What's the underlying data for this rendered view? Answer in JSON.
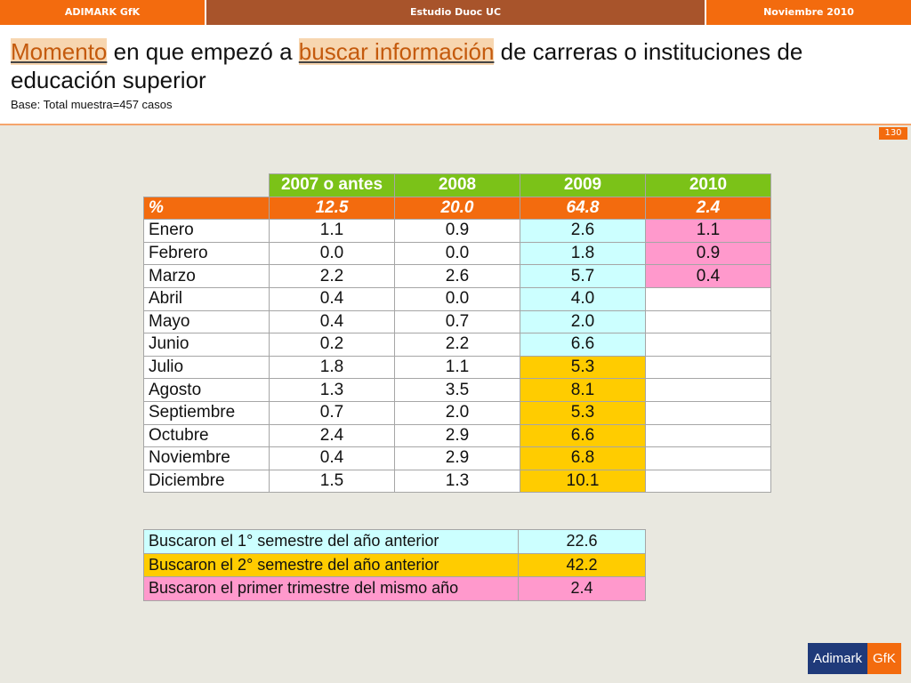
{
  "topbar": {
    "left": "ADIMARK GfK",
    "center": "Estudio Duoc UC",
    "right": "Noviembre 2010"
  },
  "title": {
    "w1": "Momento",
    "t1": " en que empezó a ",
    "w2": "buscar información",
    "t2": " de carreras o instituciones de educación superior"
  },
  "subtitle": "Base: Total muestra=457 casos",
  "page_number": "130",
  "table": {
    "headers": [
      "2007 o antes",
      "2008",
      "2009",
      "2010"
    ],
    "pct_row": {
      "label": "%",
      "values": [
        "12.5",
        "20.0",
        "64.8",
        "2.4"
      ]
    },
    "rows": [
      {
        "label": "Enero",
        "v": [
          "1.1",
          "0.9",
          "2.6",
          "1.1"
        ]
      },
      {
        "label": "Febrero",
        "v": [
          "0.0",
          "0.0",
          "1.8",
          "0.9"
        ]
      },
      {
        "label": "Marzo",
        "v": [
          "2.2",
          "2.6",
          "5.7",
          "0.4"
        ]
      },
      {
        "label": "Abril",
        "v": [
          "0.4",
          "0.0",
          "4.0",
          ""
        ]
      },
      {
        "label": "Mayo",
        "v": [
          "0.4",
          "0.7",
          "2.0",
          ""
        ]
      },
      {
        "label": "Junio",
        "v": [
          "0.2",
          "2.2",
          "6.6",
          ""
        ]
      },
      {
        "label": "Julio",
        "v": [
          "1.8",
          "1.1",
          "5.3",
          ""
        ]
      },
      {
        "label": "Agosto",
        "v": [
          "1.3",
          "3.5",
          "8.1",
          ""
        ]
      },
      {
        "label": "Septiembre",
        "v": [
          "0.7",
          "2.0",
          "5.3",
          ""
        ]
      },
      {
        "label": "Octubre",
        "v": [
          "2.4",
          "2.9",
          "6.6",
          ""
        ]
      },
      {
        "label": "Noviembre",
        "v": [
          "0.4",
          "2.9",
          "6.8",
          ""
        ]
      },
      {
        "label": "Diciembre",
        "v": [
          "1.5",
          "1.3",
          "10.1",
          ""
        ]
      }
    ]
  },
  "summary": [
    {
      "label": "Buscaron el 1° semestre del año anterior",
      "value": "22.6"
    },
    {
      "label": "Buscaron el 2° semestre del año anterior",
      "value": "42.2"
    },
    {
      "label": "Buscaron el primer trimestre del mismo año",
      "value": "2.4"
    }
  ],
  "colors": {
    "orange": "#f36b0e",
    "green": "#7bc218",
    "cyan": "#ccffff",
    "yellow": "#ffcc00",
    "pink": "#ff99cc",
    "navy": "#1f3a7a"
  },
  "logo": {
    "a": "Adimark",
    "g": "GfK"
  }
}
